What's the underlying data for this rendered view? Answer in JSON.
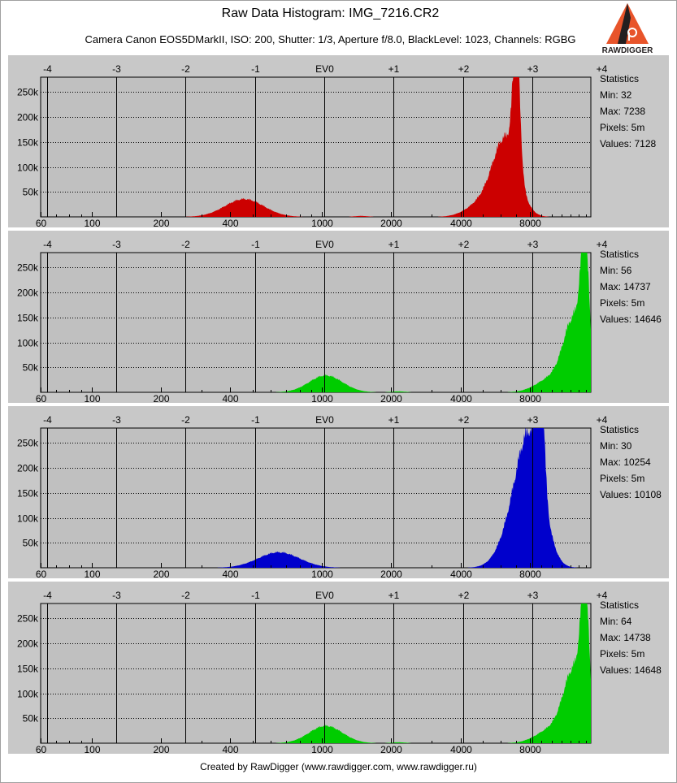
{
  "header": {
    "title": "Raw Data Histogram: IMG_7216.CR2",
    "subtitle": "Camera Canon EOS5DMarkII, ISO: 200, Shutter: 1/3, Aperture f/8.0, BlackLevel: 1023, Channels: RGBG"
  },
  "logo": {
    "text": "RAWDIGGER",
    "colors": {
      "orange": "#e8542a",
      "dark": "#231f20"
    }
  },
  "footer": {
    "text": "Created by RawDigger (www.rawdigger.com, www.rawdigger.ru)"
  },
  "chart_data": [
    {
      "type": "area",
      "channel": "R",
      "color": "#cc0000",
      "xscale": "log2",
      "xlim": [
        60,
        14737
      ],
      "ylim": [
        0,
        280000
      ],
      "x_ticks": [
        60,
        100,
        200,
        400,
        1000,
        2000,
        4000,
        8000
      ],
      "x_tick_labels": [
        "60",
        "100",
        "200",
        "400",
        "1000",
        "2000",
        "4000",
        "8000"
      ],
      "ev_ticks": [
        "-4",
        "-3",
        "-2",
        "-1",
        "EV0",
        "+1",
        "+2",
        "+3",
        "+4"
      ],
      "ev_values": [
        64,
        128,
        256,
        512,
        1024,
        2048,
        4096,
        8192,
        16384
      ],
      "y_ticks": [
        50000,
        100000,
        150000,
        200000,
        250000
      ],
      "y_tick_labels": [
        "50k",
        "100k",
        "150k",
        "200k",
        "250k"
      ],
      "peaks": [
        {
          "center": 460,
          "width": 0.28,
          "height": 38000
        },
        {
          "center": 1480,
          "width": 0.1,
          "height": 2000
        },
        {
          "center": 5000,
          "width": 0.22,
          "height": 30000
        },
        {
          "center": 6300,
          "width": 0.18,
          "height": 160000
        },
        {
          "center": 7000,
          "width": 0.05,
          "height": 270000
        }
      ],
      "stats": {
        "title": "Statistics",
        "min": "Min: 32",
        "max": "Max: 7238",
        "pixels": "Pixels: 5m",
        "values": "Values: 7128"
      }
    },
    {
      "type": "area",
      "channel": "G",
      "color": "#00cc00",
      "xscale": "log2",
      "xlim": [
        60,
        14737
      ],
      "ylim": [
        0,
        280000
      ],
      "x_ticks": [
        60,
        100,
        200,
        400,
        1000,
        2000,
        4000,
        8000
      ],
      "x_tick_labels": [
        "60",
        "100",
        "200",
        "400",
        "1000",
        "2000",
        "4000",
        "8000"
      ],
      "ev_ticks": [
        "-4",
        "-3",
        "-2",
        "-1",
        "EV0",
        "+1",
        "+2",
        "+3",
        "+4"
      ],
      "ev_values": [
        64,
        128,
        256,
        512,
        1024,
        2048,
        4096,
        8192,
        16384
      ],
      "y_ticks": [
        50000,
        100000,
        150000,
        200000,
        250000
      ],
      "y_tick_labels": [
        "50k",
        "100k",
        "150k",
        "200k",
        "250k"
      ],
      "peaks": [
        {
          "center": 1040,
          "width": 0.24,
          "height": 36000
        },
        {
          "center": 2150,
          "width": 0.1,
          "height": 2000
        },
        {
          "center": 10000,
          "width": 0.22,
          "height": 30000
        },
        {
          "center": 12500,
          "width": 0.15,
          "height": 150000
        },
        {
          "center": 13900,
          "width": 0.06,
          "height": 255000
        }
      ],
      "stats": {
        "title": "Statistics",
        "min": "Min: 56",
        "max": "Max: 14737",
        "pixels": "Pixels: 5m",
        "values": "Values: 14646"
      }
    },
    {
      "type": "area",
      "channel": "B",
      "color": "#0000cc",
      "xscale": "log2",
      "xlim": [
        60,
        14737
      ],
      "ylim": [
        0,
        280000
      ],
      "x_ticks": [
        60,
        100,
        200,
        400,
        1000,
        2000,
        4000,
        8000
      ],
      "x_tick_labels": [
        "60",
        "100",
        "200",
        "400",
        "1000",
        "2000",
        "4000",
        "8000"
      ],
      "ev_ticks": [
        "-4",
        "-3",
        "-2",
        "-1",
        "EV0",
        "+1",
        "+2",
        "+3",
        "+4"
      ],
      "ev_values": [
        64,
        128,
        256,
        512,
        1024,
        2048,
        4096,
        8192,
        16384
      ],
      "y_ticks": [
        50000,
        100000,
        150000,
        200000,
        250000
      ],
      "y_tick_labels": [
        "50k",
        "100k",
        "150k",
        "200k",
        "250k"
      ],
      "peaks": [
        {
          "center": 650,
          "width": 0.3,
          "height": 33000
        },
        {
          "center": 7200,
          "width": 0.22,
          "height": 120000
        },
        {
          "center": 8200,
          "width": 0.18,
          "height": 200000
        },
        {
          "center": 8900,
          "width": 0.05,
          "height": 250000
        }
      ],
      "stats": {
        "title": "Statistics",
        "min": "Min: 30",
        "max": "Max: 10254",
        "pixels": "Pixels: 5m",
        "values": "Values: 10108"
      }
    },
    {
      "type": "area",
      "channel": "G2",
      "color": "#00cc00",
      "xscale": "log2",
      "xlim": [
        60,
        14737
      ],
      "ylim": [
        0,
        280000
      ],
      "x_ticks": [
        60,
        100,
        200,
        400,
        1000,
        2000,
        4000,
        8000
      ],
      "x_tick_labels": [
        "60",
        "100",
        "200",
        "400",
        "1000",
        "2000",
        "4000",
        "8000"
      ],
      "ev_ticks": [
        "-4",
        "-3",
        "-2",
        "-1",
        "EV0",
        "+1",
        "+2",
        "+3",
        "+4"
      ],
      "ev_values": [
        64,
        128,
        256,
        512,
        1024,
        2048,
        4096,
        8192,
        16384
      ],
      "y_ticks": [
        50000,
        100000,
        150000,
        200000,
        250000
      ],
      "y_tick_labels": [
        "50k",
        "100k",
        "150k",
        "200k",
        "250k"
      ],
      "peaks": [
        {
          "center": 1040,
          "width": 0.24,
          "height": 37000
        },
        {
          "center": 2150,
          "width": 0.1,
          "height": 2000
        },
        {
          "center": 10000,
          "width": 0.22,
          "height": 30000
        },
        {
          "center": 12500,
          "width": 0.15,
          "height": 150000
        },
        {
          "center": 13900,
          "width": 0.06,
          "height": 262000
        }
      ],
      "stats": {
        "title": "Statistics",
        "min": "Min: 64",
        "max": "Max: 14738",
        "pixels": "Pixels: 5m",
        "values": "Values: 14648"
      }
    }
  ]
}
